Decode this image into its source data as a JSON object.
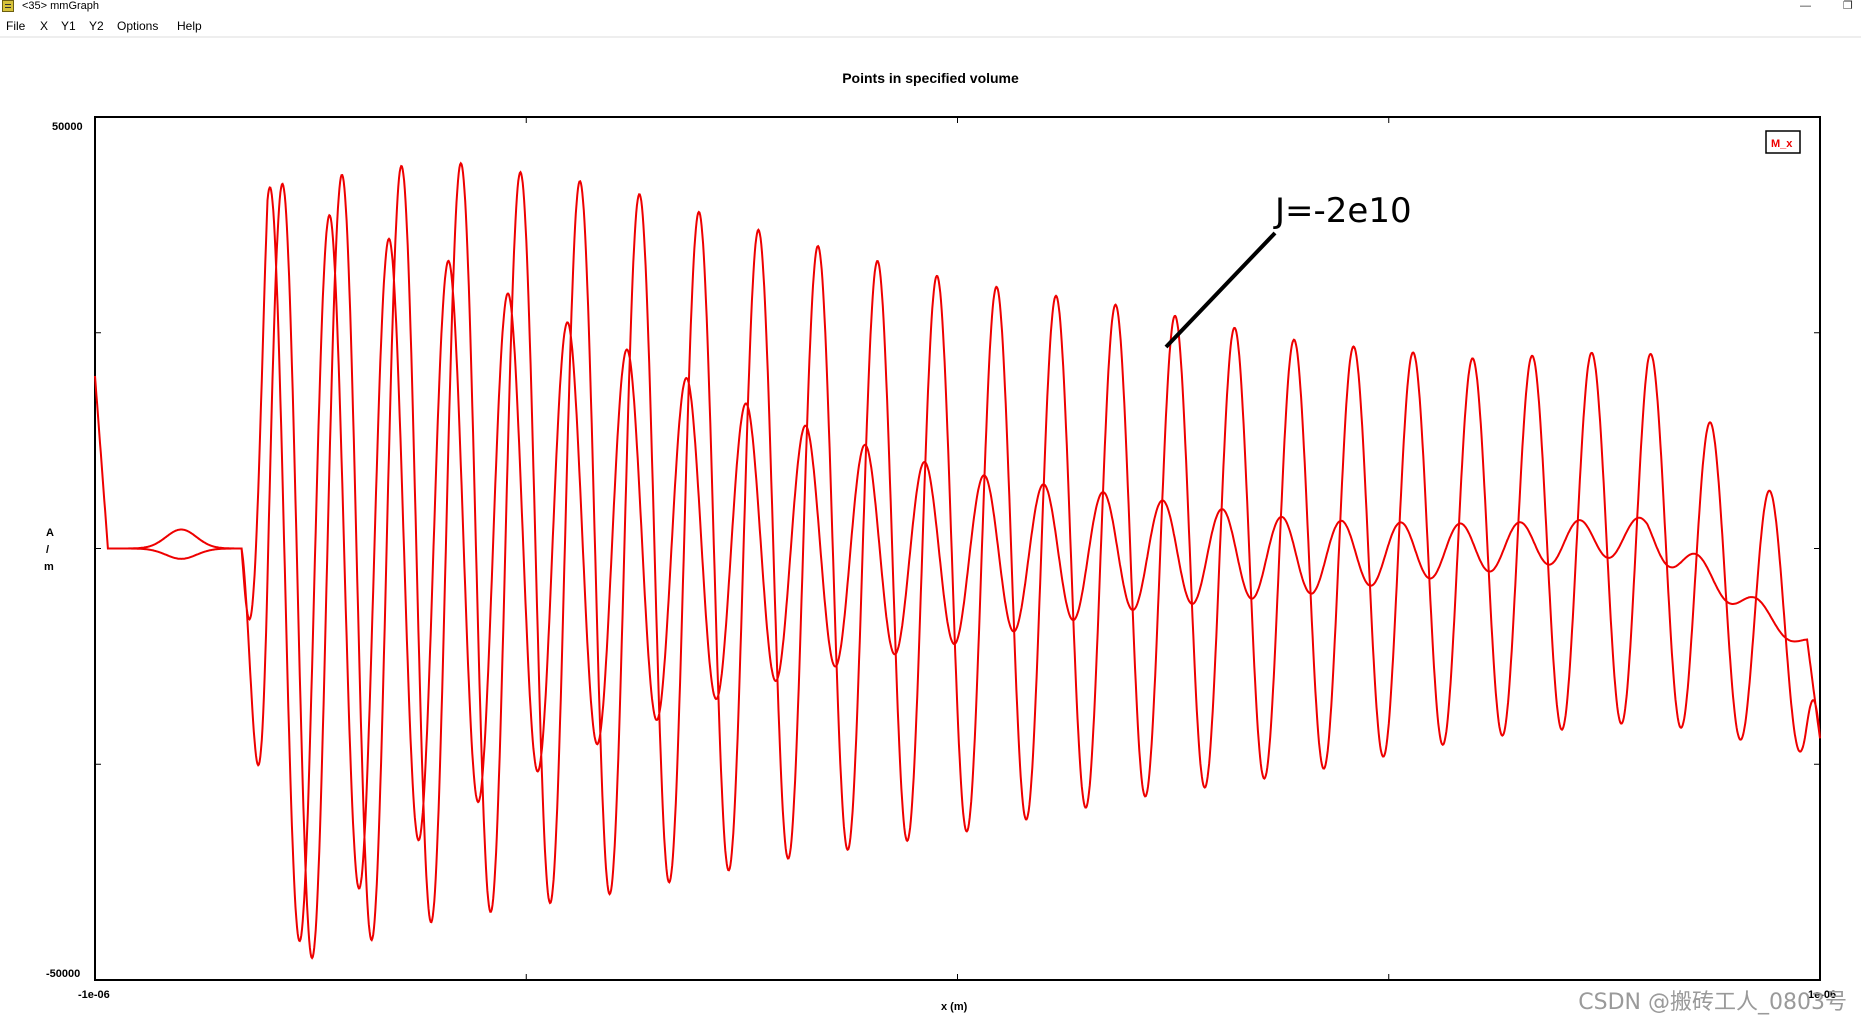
{
  "window": {
    "title": "<35> mmGraph",
    "icon": "graph-app-icon"
  },
  "menubar": {
    "items": [
      "File",
      "X",
      "Y1",
      "Y2",
      "Options",
      "Help"
    ]
  },
  "watermark": "CSDN @搬砖工人_0803号",
  "colors": {
    "series": "#ee0000",
    "frame": "#000000",
    "annotation": "#000000"
  },
  "chart_data": {
    "type": "line",
    "title": "Points in specified volume",
    "xlabel": "x (m)",
    "ylabel": "A / m",
    "xlim": [
      -1e-06,
      1e-06
    ],
    "ylim": [
      -50000,
      50000
    ],
    "x_tick_labels": [
      "-1e-06",
      "1e-06"
    ],
    "y_tick_labels": [
      "50000",
      "-50000"
    ],
    "grid": false,
    "legend": {
      "placement": "top-right",
      "entries": [
        "M_x"
      ]
    },
    "annotation": {
      "text": "J=-2e10",
      "x": 5.5e-07,
      "y": 21000
    },
    "series": [
      {
        "name": "M_x",
        "description_points_x": [
          -1e-06,
          -8e-07,
          -6e-07,
          -4e-07,
          -2e-07,
          0,
          2e-07,
          4e-07,
          6e-07,
          8e-07,
          1e-06
        ],
        "envelope_max": [
          2000,
          42000,
          45000,
          42000,
          36000,
          31000,
          28000,
          24000,
          22000,
          23000,
          0
        ],
        "envelope_min": [
          -2000,
          -49000,
          -43000,
          -40000,
          -36000,
          -33000,
          -29000,
          -26000,
          -22000,
          -20000,
          -24000
        ]
      }
    ]
  }
}
